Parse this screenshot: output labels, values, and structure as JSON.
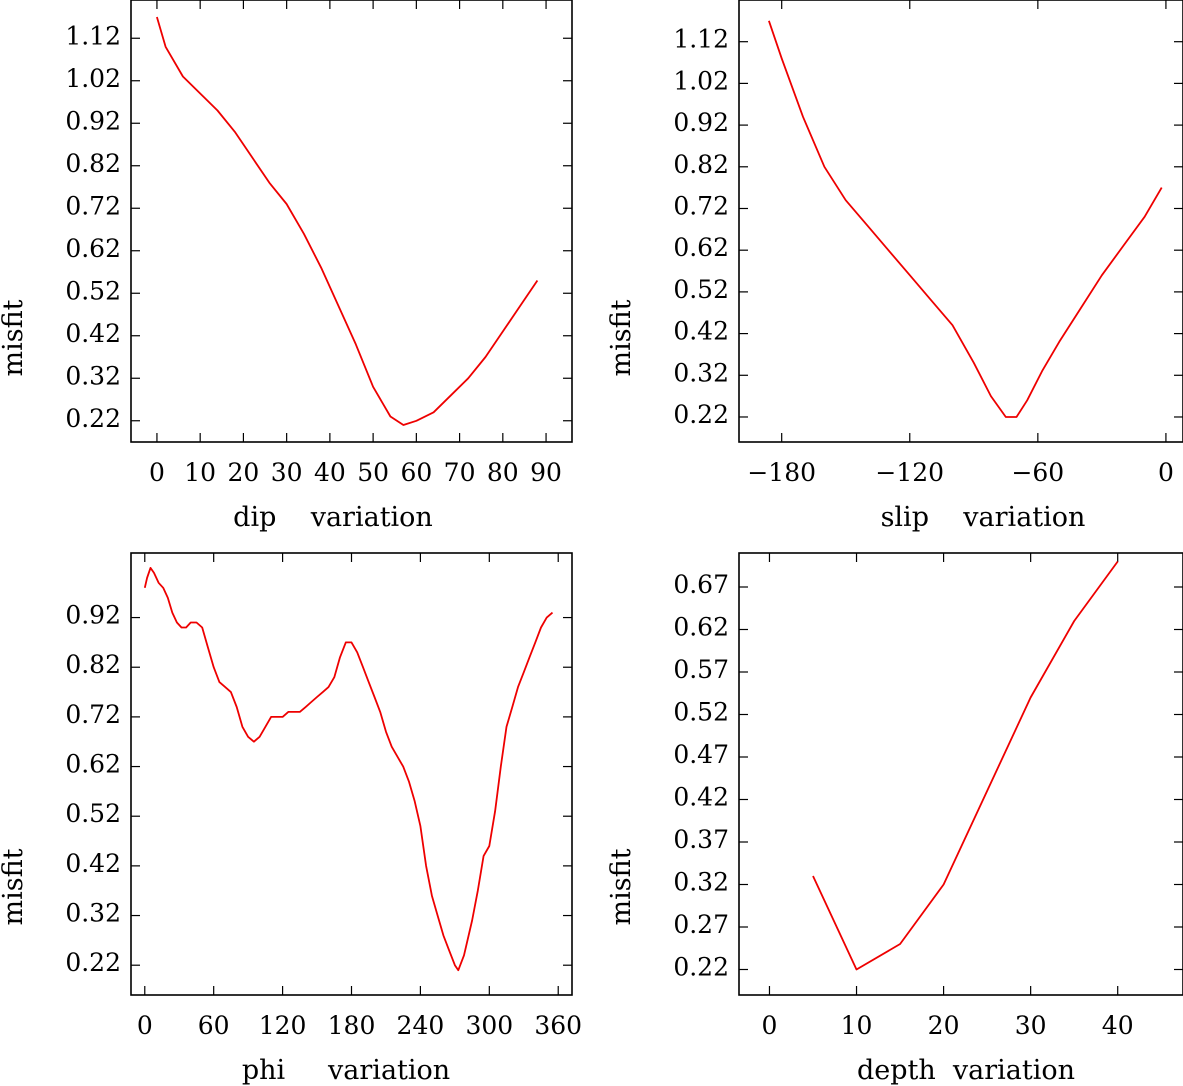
{
  "line_color": "#ee0000",
  "chart_data": [
    {
      "type": "line",
      "panel": "top-left",
      "xlabel": "dip    variation",
      "ylabel": "misfit",
      "xlim": [
        -6,
        96
      ],
      "ylim": [
        0.17,
        1.21
      ],
      "xticks": [
        0,
        10,
        20,
        30,
        40,
        50,
        60,
        70,
        80,
        90
      ],
      "yticks": [
        0.22,
        0.32,
        0.42,
        0.52,
        0.62,
        0.72,
        0.82,
        0.92,
        1.02,
        1.12
      ],
      "x": [
        0,
        2,
        6,
        10,
        14,
        18,
        22,
        26,
        30,
        34,
        38,
        42,
        46,
        50,
        54,
        57,
        60,
        64,
        68,
        72,
        76,
        80,
        84,
        88
      ],
      "y": [
        1.17,
        1.1,
        1.03,
        0.99,
        0.95,
        0.9,
        0.84,
        0.78,
        0.73,
        0.66,
        0.58,
        0.49,
        0.4,
        0.3,
        0.23,
        0.21,
        0.22,
        0.24,
        0.28,
        0.32,
        0.37,
        0.43,
        0.49,
        0.55
      ]
    },
    {
      "type": "line",
      "panel": "top-right",
      "xlabel": "slip    variation",
      "ylabel": "misfit",
      "xlim": [
        -200,
        8
      ],
      "ylim": [
        0.16,
        1.22
      ],
      "xticks": [
        -180,
        -120,
        -60,
        0
      ],
      "xticklabels": [
        "−180",
        "−120",
        "−60",
        "0"
      ],
      "yticks": [
        0.22,
        0.32,
        0.42,
        0.52,
        0.62,
        0.72,
        0.82,
        0.92,
        1.02,
        1.12
      ],
      "x": [
        -186,
        -180,
        -170,
        -160,
        -150,
        -140,
        -130,
        -120,
        -110,
        -100,
        -90,
        -82,
        -75,
        -70,
        -65,
        -58,
        -50,
        -40,
        -30,
        -20,
        -10,
        -2
      ],
      "y": [
        1.17,
        1.08,
        0.94,
        0.82,
        0.74,
        0.68,
        0.62,
        0.56,
        0.5,
        0.44,
        0.35,
        0.27,
        0.22,
        0.22,
        0.26,
        0.33,
        0.4,
        0.48,
        0.56,
        0.63,
        0.7,
        0.77
      ]
    },
    {
      "type": "line",
      "panel": "bottom-left",
      "xlabel": "phi     variation",
      "ylabel": "misfit",
      "xlim": [
        -12,
        372
      ],
      "ylim": [
        0.16,
        1.05
      ],
      "xticks": [
        0,
        60,
        120,
        180,
        240,
        300,
        360
      ],
      "yticks": [
        0.22,
        0.32,
        0.42,
        0.52,
        0.62,
        0.72,
        0.82,
        0.92
      ],
      "x": [
        0,
        2,
        5,
        8,
        12,
        16,
        20,
        24,
        28,
        32,
        36,
        40,
        45,
        50,
        55,
        60,
        65,
        70,
        75,
        80,
        85,
        90,
        95,
        100,
        105,
        110,
        115,
        120,
        125,
        130,
        135,
        140,
        145,
        150,
        155,
        160,
        165,
        170,
        175,
        180,
        185,
        190,
        195,
        200,
        205,
        210,
        215,
        220,
        225,
        230,
        235,
        240,
        245,
        250,
        255,
        260,
        265,
        270,
        273,
        278,
        285,
        290,
        295,
        300,
        305,
        310,
        315,
        320,
        325,
        330,
        335,
        340,
        345,
        350,
        355
      ],
      "y": [
        0.98,
        1.0,
        1.02,
        1.01,
        0.99,
        0.98,
        0.96,
        0.93,
        0.91,
        0.9,
        0.9,
        0.91,
        0.91,
        0.9,
        0.86,
        0.82,
        0.79,
        0.78,
        0.77,
        0.74,
        0.7,
        0.68,
        0.67,
        0.68,
        0.7,
        0.72,
        0.72,
        0.72,
        0.73,
        0.73,
        0.73,
        0.74,
        0.75,
        0.76,
        0.77,
        0.78,
        0.8,
        0.84,
        0.87,
        0.87,
        0.85,
        0.82,
        0.79,
        0.76,
        0.73,
        0.69,
        0.66,
        0.64,
        0.62,
        0.59,
        0.55,
        0.5,
        0.42,
        0.36,
        0.32,
        0.28,
        0.25,
        0.22,
        0.21,
        0.24,
        0.31,
        0.37,
        0.44,
        0.46,
        0.53,
        0.62,
        0.7,
        0.74,
        0.78,
        0.81,
        0.84,
        0.87,
        0.9,
        0.92,
        0.93
      ]
    },
    {
      "type": "line",
      "panel": "bottom-right",
      "xlabel": "depth  variation",
      "ylabel": "misfit",
      "xlim": [
        -3.5,
        47.5
      ],
      "ylim": [
        0.19,
        0.71
      ],
      "xticks": [
        0,
        10,
        20,
        30,
        40
      ],
      "yticks": [
        0.22,
        0.27,
        0.32,
        0.37,
        0.42,
        0.47,
        0.52,
        0.57,
        0.62,
        0.67
      ],
      "x": [
        5,
        10,
        15,
        20,
        25,
        30,
        35,
        40
      ],
      "y": [
        0.33,
        0.22,
        0.25,
        0.32,
        0.43,
        0.54,
        0.63,
        0.7
      ]
    }
  ]
}
